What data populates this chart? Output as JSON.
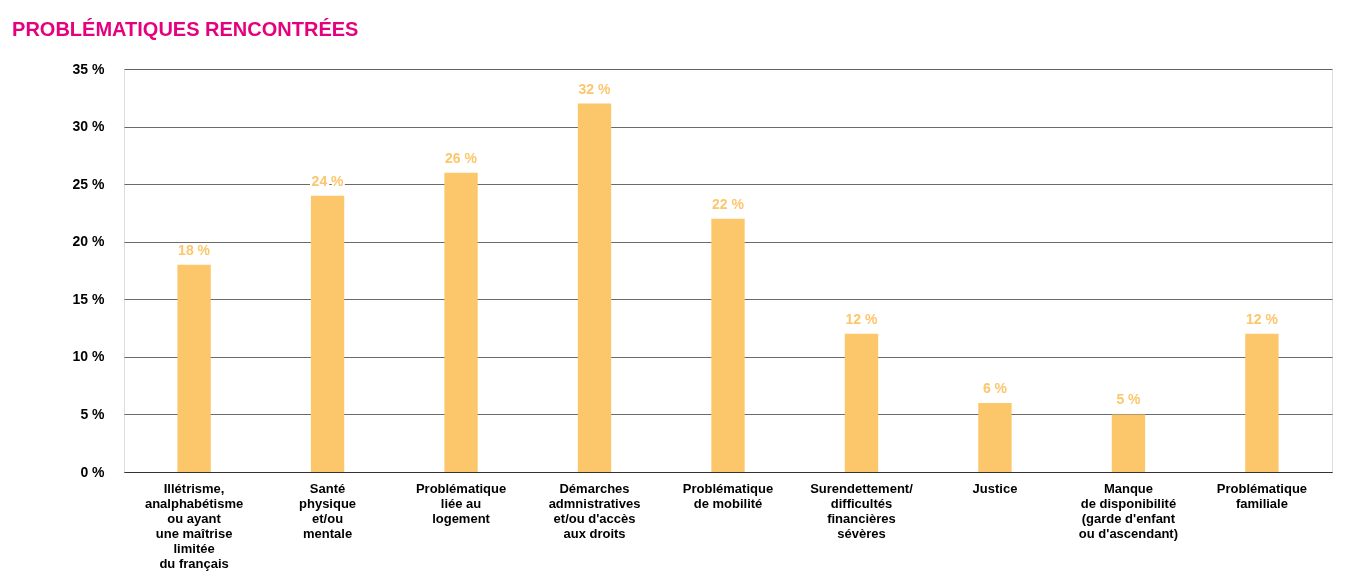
{
  "chart_data": {
    "type": "bar",
    "title": "PROBLÉMATIQUES RENCONTRÉES",
    "categories": [
      "Illétrisme,\nanalphabétisme\nou ayant\nune maîtrise\nlimitée\ndu français",
      "Santé\nphysique\net/ou\nmentale",
      "Problématique\nliée au\nlogement",
      "Démarches\nadmnistratives\net/ou d'accès\naux droits",
      "Problématique\nde mobilité",
      "Surendettement/\ndifficultés\nfinancières\nsévères",
      "Justice",
      "Manque\nde disponibilité\n(garde d'enfant\nou d'ascendant)",
      "Problématique\nfamiliale"
    ],
    "values": [
      18,
      24,
      26,
      32,
      22,
      12,
      6,
      5,
      12
    ],
    "value_labels": [
      "18 %",
      "24 %",
      "26 %",
      "32 %",
      "22 %",
      "12 %",
      "6 %",
      "5 %",
      "12 %"
    ],
    "color": "#fcc66b",
    "ylim": [
      0,
      35
    ],
    "yticks": [
      {
        "value": 0,
        "label": "0 %"
      },
      {
        "value": 5,
        "label": "5 %"
      },
      {
        "value": 10,
        "label": "10 %"
      },
      {
        "value": 15,
        "label": "15 %"
      },
      {
        "value": 20,
        "label": "20 %"
      },
      {
        "value": 25,
        "label": "25 %"
      },
      {
        "value": 30,
        "label": "30 %"
      },
      {
        "value": 35,
        "label": "35 %"
      }
    ],
    "grid": "y"
  }
}
